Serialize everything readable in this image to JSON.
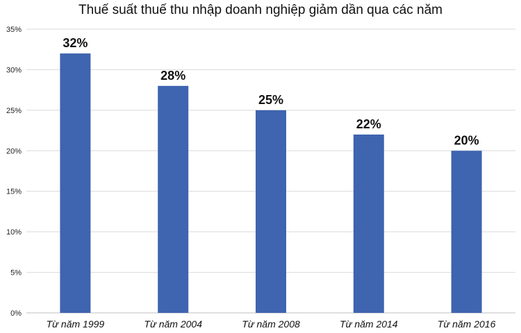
{
  "chart_data": {
    "type": "bar",
    "title": "Thuế suất thuế thu nhập doanh nghiệp giảm dần qua các năm",
    "categories": [
      "Từ năm 1999",
      "Từ năm 2004",
      "Từ năm 2008",
      "Từ năm 2014",
      "Từ năm 2016"
    ],
    "values": [
      32,
      28,
      25,
      22,
      20
    ],
    "data_labels": [
      "32%",
      "28%",
      "25%",
      "22%",
      "20%"
    ],
    "yticks": [
      0,
      5,
      10,
      15,
      20,
      25,
      30,
      35
    ],
    "ytick_labels": [
      "0%",
      "5%",
      "10%",
      "15%",
      "20%",
      "25%",
      "30%",
      "35%"
    ],
    "ylim": [
      0,
      35
    ],
    "grid": true,
    "legend": "none",
    "colors": {
      "bar": "#3f64b0",
      "grid": "#d9d9d9",
      "axis": "#bfbfbf"
    }
  }
}
